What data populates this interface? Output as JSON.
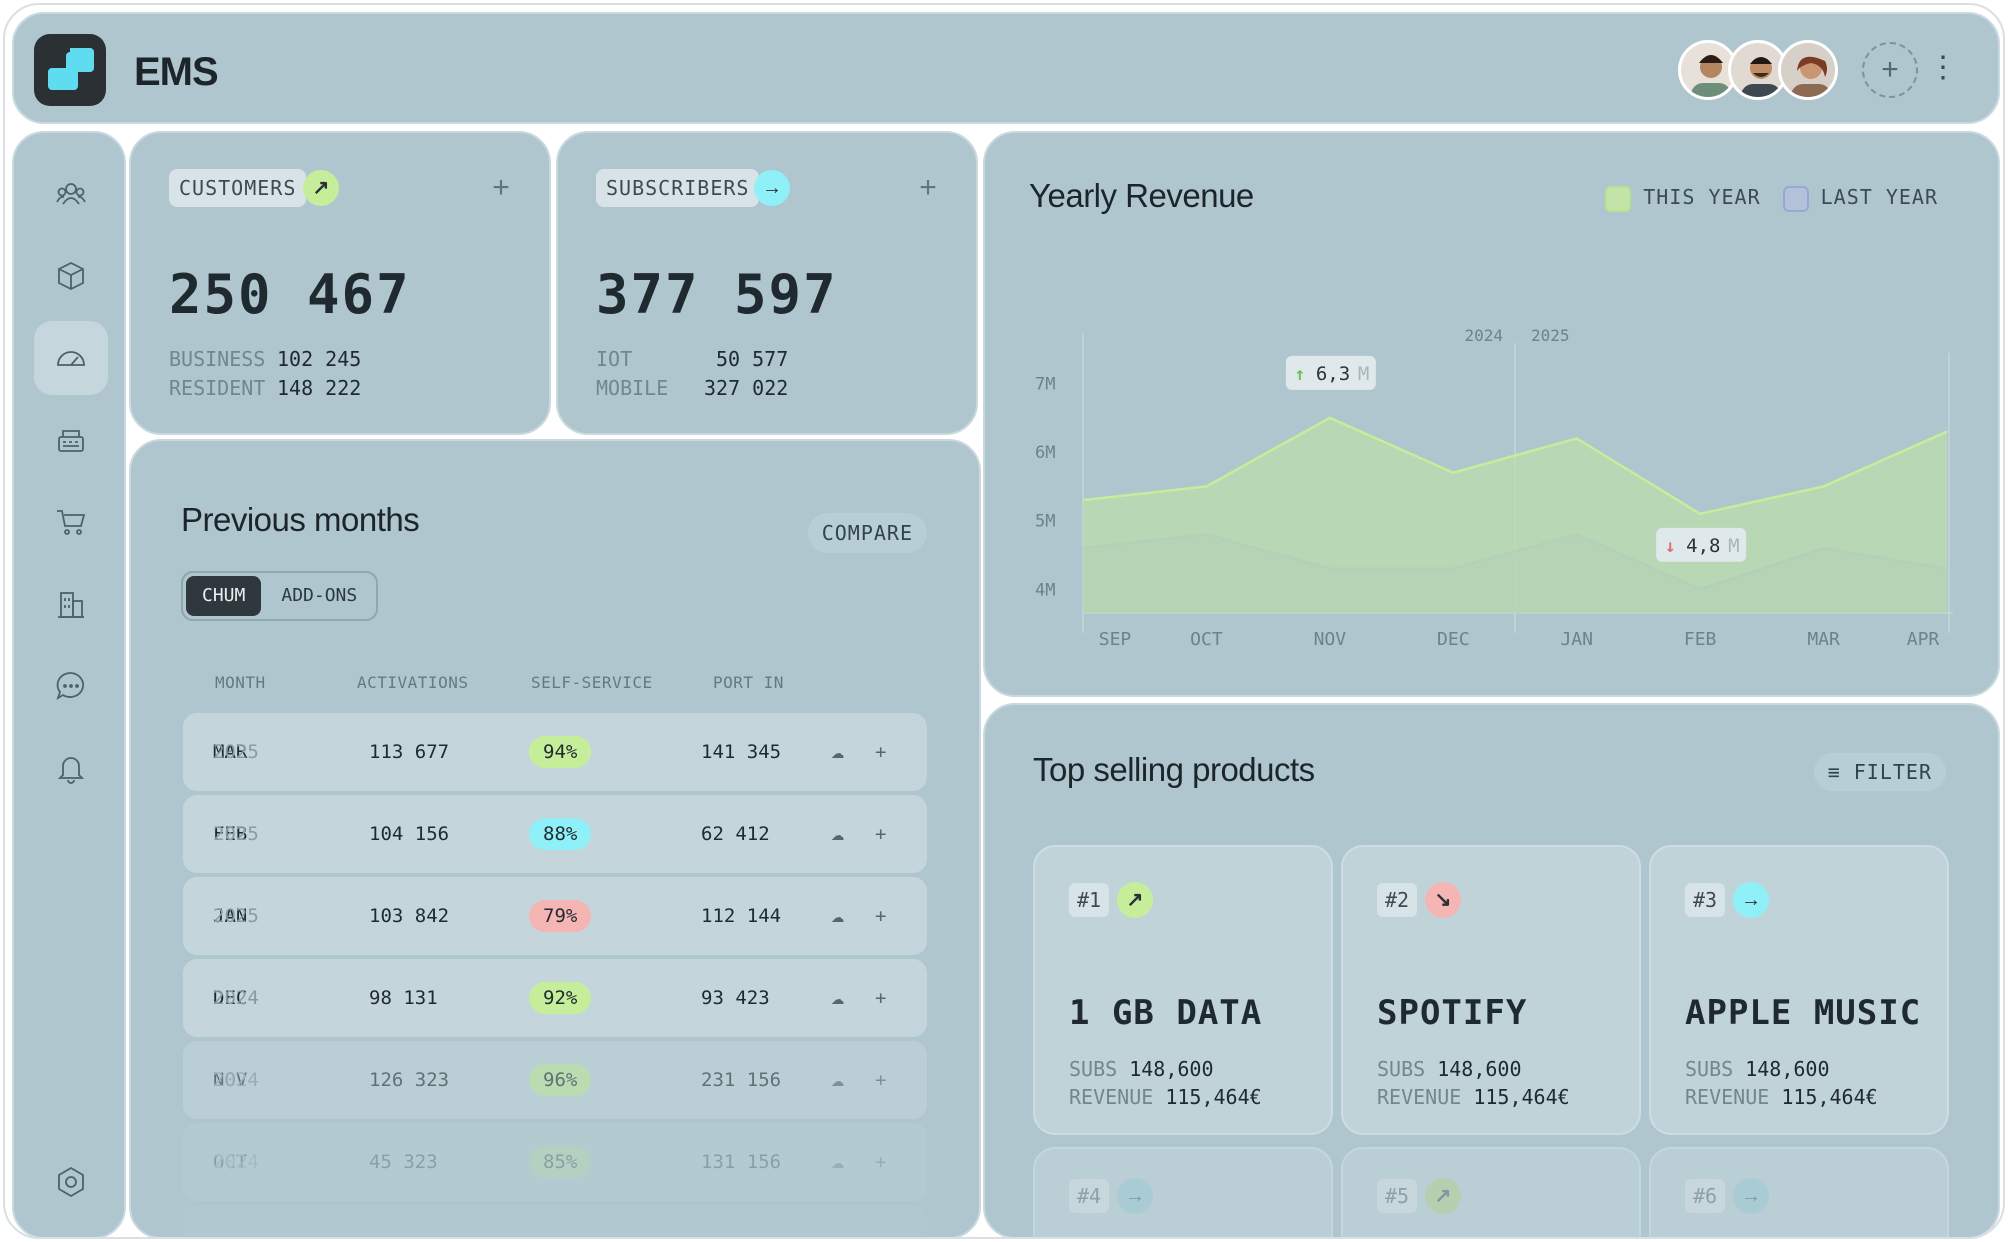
{
  "header": {
    "title": "EMS"
  },
  "colors": {
    "accent_green": "#c6ee9a",
    "accent_cyan": "#8ff0f7",
    "accent_red": "#f5b5b5",
    "panel": "#afc6ce"
  },
  "sidebar": {
    "items": [
      "customers",
      "products",
      "dashboard",
      "billing",
      "shop",
      "buildings",
      "messages",
      "notifications",
      "settings"
    ]
  },
  "stats": [
    {
      "label": "CUSTOMERS",
      "value": "250 467",
      "rows": [
        {
          "k": "BUSINESS",
          "v": "102 245"
        },
        {
          "k": "RESIDENT",
          "v": "148 222"
        }
      ],
      "icon": "arrow-up-right-icon"
    },
    {
      "label": "SUBSCRIBERS",
      "value": "377 597",
      "rows": [
        {
          "k": "IOT",
          "v": "50 577"
        },
        {
          "k": "MOBILE",
          "v": "327 022"
        }
      ],
      "icon": "arrow-right-icon"
    }
  ],
  "previous": {
    "title": "Previous months",
    "compare": "COMPARE",
    "tabs": [
      "CHUM",
      "ADD-ONS"
    ],
    "columns": [
      "MONTH",
      "ACTIVATIONS",
      "SELF-SERVICE",
      "PORT IN"
    ],
    "rows": [
      {
        "month": "MAR",
        "year": "2025",
        "activations": "113 677",
        "self": "94%",
        "port": "141 345"
      },
      {
        "month": "FEB",
        "year": "2025",
        "activations": "104 156",
        "self": "88%",
        "port": "62 412"
      },
      {
        "month": "JAN",
        "year": "2025",
        "activations": "103 842",
        "self": "79%",
        "port": "112 144"
      },
      {
        "month": "DEC",
        "year": "2024",
        "activations": "98 131",
        "self": "92%",
        "port": "93 423"
      },
      {
        "month": "NOV",
        "year": "2024",
        "activations": "126 323",
        "self": "96%",
        "port": "231 156"
      },
      {
        "month": "OCT",
        "year": "2024",
        "activations": "45 323",
        "self": "85%",
        "port": "131 156"
      }
    ]
  },
  "revenue": {
    "title": "Yearly Revenue",
    "legend_this": "THIS YEAR",
    "legend_last": "LAST YEAR",
    "tooltip_high": "6,3",
    "tooltip_low": "4,8",
    "tooltip_unit": "M",
    "year_left": "2024",
    "year_right": "2025"
  },
  "chart_data": {
    "type": "area",
    "title": "Yearly Revenue",
    "x": [
      "SEP",
      "OCT",
      "NOV",
      "DEC",
      "JAN",
      "FEB",
      "MAR",
      "APR"
    ],
    "ylim": [
      3.8,
      7.3
    ],
    "yticks": [
      "7M",
      "6M",
      "5M",
      "4M"
    ],
    "series": [
      {
        "name": "THIS YEAR",
        "values": [
          5.3,
          5.5,
          6.5,
          5.7,
          6.2,
          5.1,
          5.5,
          6.3
        ]
      },
      {
        "name": "LAST YEAR",
        "values": [
          4.6,
          4.8,
          4.3,
          4.3,
          4.8,
          4.0,
          4.6,
          4.3
        ]
      }
    ],
    "grid": false,
    "legend": "top-right"
  },
  "top": {
    "title": "Top selling products",
    "filter": "FILTER",
    "products": [
      {
        "rank": "#1",
        "name": "1 GB DATA",
        "subs": "148,600",
        "revenue": "115,464€"
      },
      {
        "rank": "#2",
        "name": "SPOTIFY",
        "subs": "148,600",
        "revenue": "115,464€"
      },
      {
        "rank": "#3",
        "name": "APPLE MUSIC",
        "subs": "148,600",
        "revenue": "115,464€"
      }
    ],
    "subs_label": "SUBS",
    "revenue_label": "REVENUE",
    "more": [
      "#4",
      "#5",
      "#6"
    ]
  }
}
